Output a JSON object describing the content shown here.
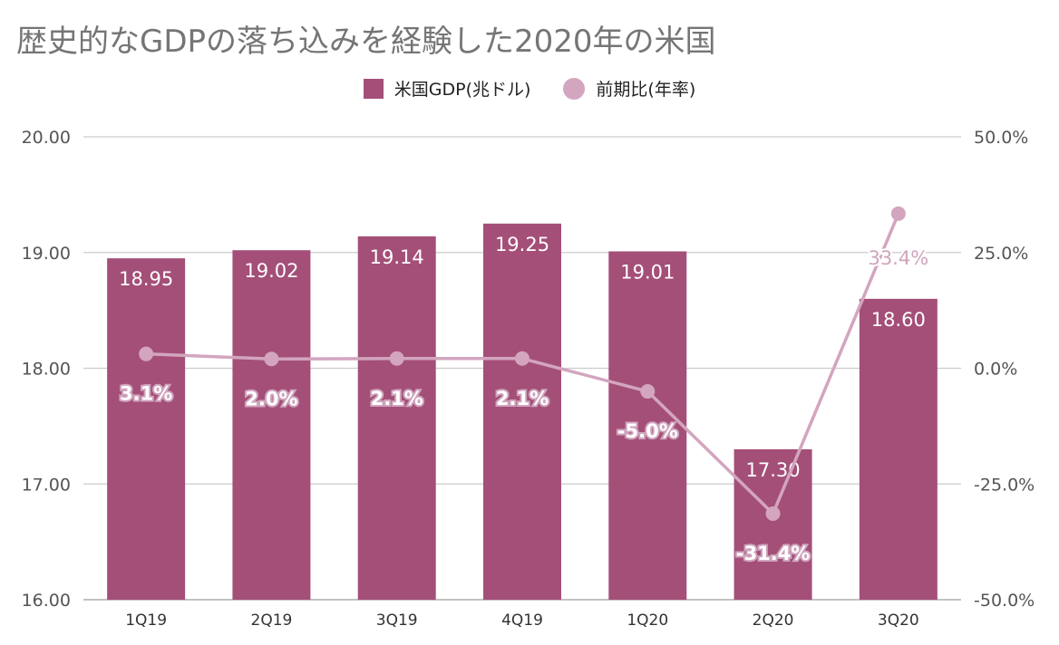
{
  "chart_data": {
    "type": "bar",
    "title": "歴史的なGDPの落ち込みを経験した2020年の米国",
    "categories": [
      "1Q19",
      "2Q19",
      "3Q19",
      "4Q19",
      "1Q20",
      "2Q20",
      "3Q20"
    ],
    "series": [
      {
        "name": "米国GDP(兆ドル)",
        "type": "bar",
        "axis": "left",
        "values": [
          18.95,
          19.02,
          19.14,
          19.25,
          19.01,
          17.3,
          18.6
        ],
        "labels": [
          "18.95",
          "19.02",
          "19.14",
          "19.25",
          "19.01",
          "17.30",
          "18.60"
        ],
        "color": "#a44f78"
      },
      {
        "name": "前期比(年率)",
        "type": "line",
        "axis": "right",
        "values": [
          3.1,
          2.0,
          2.1,
          2.1,
          -5.0,
          -31.4,
          33.4
        ],
        "labels": [
          "3.1%",
          "2.0%",
          "2.1%",
          "2.1%",
          "-5.0%",
          "-31.4%",
          "33.4%"
        ],
        "color": "#d3a5bf"
      }
    ],
    "y_left": {
      "range": [
        16,
        20
      ],
      "ticks": [
        "20.00",
        "19.00",
        "18.00",
        "17.00",
        "16.00"
      ]
    },
    "y_right": {
      "range": [
        -50,
        50
      ],
      "ticks": [
        "50.0%",
        "25.0%",
        "0.0%",
        "-25.0%",
        "-50.0%"
      ]
    },
    "grid": true,
    "legend_position": "top"
  }
}
